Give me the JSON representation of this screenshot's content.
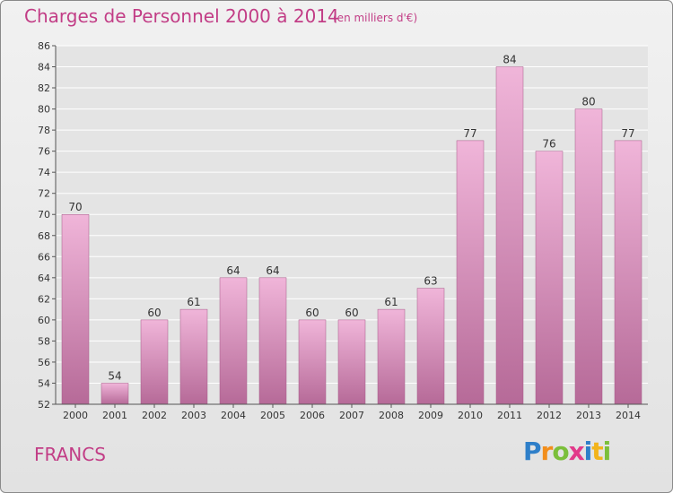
{
  "header": {
    "title": "Charges de Personnel 2000 à 2014",
    "subtitle": "(en milliers d'€)"
  },
  "footer": {
    "label": "FRANCS",
    "logo_letters": [
      "P",
      "r",
      "o",
      "x",
      "i",
      "t",
      "i"
    ]
  },
  "colors": {
    "accent": "#c23d86",
    "bar_light": "#f0b5d9",
    "bar_dark": "#b66a98",
    "axis": "#555555",
    "grid": "#ffffff",
    "logo": [
      "#2e7fc9",
      "#f28e1c",
      "#7bbf3a",
      "#e23a8a",
      "#2e7fc9",
      "#f2b41c",
      "#7bbf3a"
    ]
  },
  "chart_data": {
    "type": "bar",
    "categories": [
      "2000",
      "2001",
      "2002",
      "2003",
      "2004",
      "2005",
      "2006",
      "2007",
      "2008",
      "2009",
      "2010",
      "2011",
      "2012",
      "2013",
      "2014"
    ],
    "values": [
      70,
      54,
      60,
      61,
      64,
      64,
      60,
      60,
      61,
      63,
      77,
      84,
      76,
      80,
      77
    ],
    "ylim": [
      52,
      86
    ],
    "yticks": [
      52,
      54,
      56,
      58,
      60,
      62,
      64,
      66,
      68,
      70,
      72,
      74,
      76,
      78,
      80,
      82,
      84,
      86
    ],
    "grid": true,
    "legend": "none"
  }
}
